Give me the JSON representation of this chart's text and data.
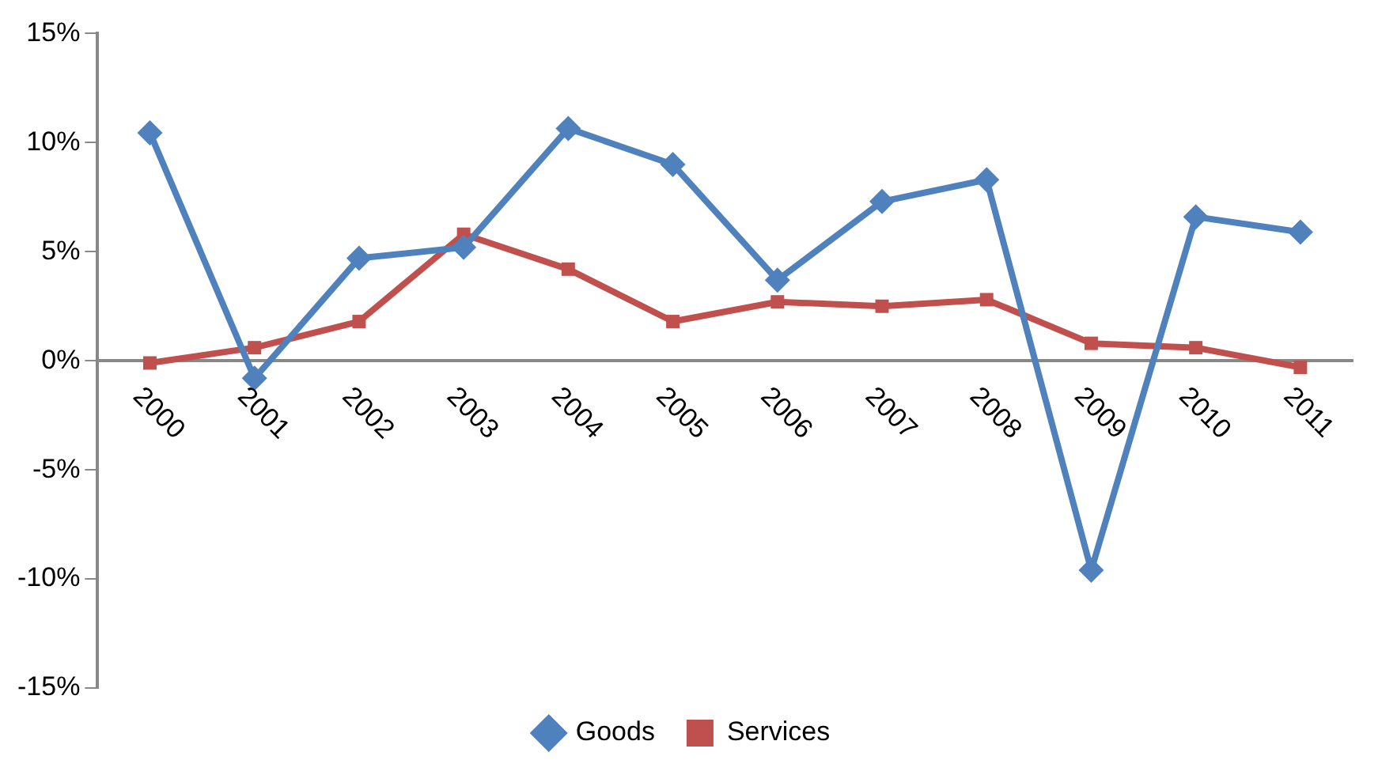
{
  "chart_data": {
    "type": "line",
    "categories": [
      "2000",
      "2001",
      "2002",
      "2003",
      "2004",
      "2005",
      "2006",
      "2007",
      "2008",
      "2009",
      "2010",
      "2011"
    ],
    "series": [
      {
        "name": "Goods",
        "color": "#4f81bd",
        "marker": "diamond",
        "values": [
          10.45,
          -0.8,
          4.7,
          5.2,
          10.65,
          9.0,
          3.7,
          7.3,
          8.3,
          -9.6,
          6.6,
          5.9
        ]
      },
      {
        "name": "Services",
        "color": "#c0504d",
        "marker": "square",
        "values": [
          -0.1,
          0.6,
          1.8,
          5.8,
          4.2,
          1.8,
          2.7,
          2.5,
          2.8,
          0.8,
          0.6,
          -0.3
        ]
      }
    ],
    "ylim": [
      -15,
      15
    ],
    "yticks": [
      {
        "value": -15,
        "label": "-15%"
      },
      {
        "value": -10,
        "label": "-10%"
      },
      {
        "value": -5,
        "label": "-5%"
      },
      {
        "value": 0,
        "label": "0%"
      },
      {
        "value": 5,
        "label": "5%"
      },
      {
        "value": 10,
        "label": "10%"
      },
      {
        "value": 15,
        "label": "15%"
      }
    ],
    "grid": false,
    "legend": "bottom",
    "line_style": "solid"
  }
}
